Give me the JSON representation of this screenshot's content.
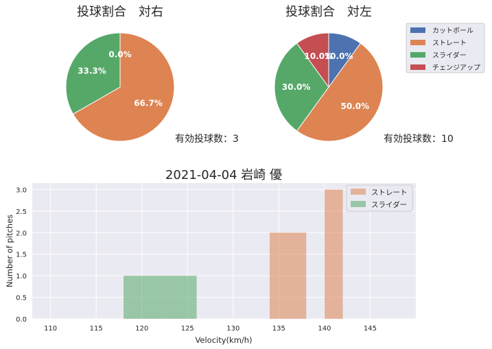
{
  "chart_data": [
    {
      "type": "pie",
      "title": "投球割合　対右",
      "labels": [
        "カットボール",
        "ストレート",
        "スライダー",
        "チェンジアップ"
      ],
      "values": [
        0,
        66.7,
        33.3,
        0
      ],
      "pct_labels": [
        "0.0%",
        "66.7%",
        "33.3%",
        ""
      ],
      "colors": [
        "#4c72b0",
        "#dd8452",
        "#55a868",
        "#c44e52"
      ],
      "note": "有効投球数：3"
    },
    {
      "type": "pie",
      "title": "投球割合　対左",
      "labels": [
        "カットボール",
        "ストレート",
        "スライダー",
        "チェンジアップ"
      ],
      "values": [
        10,
        50,
        30,
        10
      ],
      "pct_labels": [
        "10.0%",
        "50.0%",
        "30.0%",
        "10.0%"
      ],
      "colors": [
        "#4c72b0",
        "#dd8452",
        "#55a868",
        "#c44e52"
      ],
      "note": "有効投球数：10",
      "legend": "top-right"
    },
    {
      "type": "bar",
      "subtype": "histogram",
      "title": "2021-04-04 岩崎 優",
      "xlabel": "Velocity(km/h)",
      "ylabel": "Number of pitches",
      "xlim": [
        108,
        150
      ],
      "ylim": [
        0,
        3.15
      ],
      "xticks": [
        110,
        115,
        120,
        125,
        130,
        135,
        140,
        145
      ],
      "yticks": [
        0,
        0.5,
        1,
        1.5,
        2,
        2.5,
        3
      ],
      "ytick_labels": [
        "0.0",
        "0.5",
        "1.0",
        "1.5",
        "2.0",
        "2.5",
        "3.0"
      ],
      "grid": true,
      "legend": "top-right",
      "series": [
        {
          "name": "ストレート",
          "color": "#dd8452",
          "bins": [
            [
              134,
              136,
              2
            ],
            [
              136,
              138,
              2
            ],
            [
              140,
              142,
              3
            ]
          ]
        },
        {
          "name": "スライダー",
          "color": "#55a868",
          "bins": [
            [
              118,
              120,
              1
            ],
            [
              120,
              122,
              1
            ],
            [
              122,
              124,
              1
            ],
            [
              124,
              126,
              1
            ]
          ]
        }
      ]
    }
  ]
}
